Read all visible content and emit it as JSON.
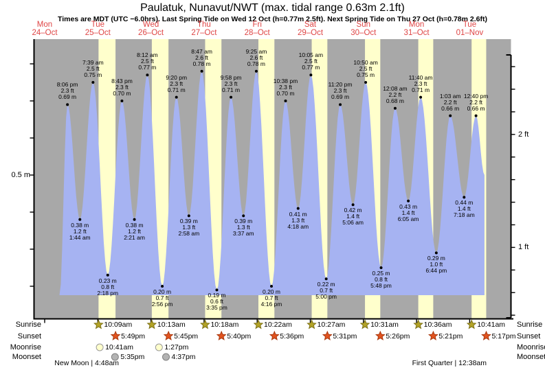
{
  "header": {
    "title": "Paulatuk, Nunavut/NWT (max. tidal range 0.63m 2.1ft)",
    "subtitle": "Times are MDT (UTC −6.0hrs). Last Spring Tide on Wed 12 Oct (h=0.77m 2.5ft). Next Spring Tide on Thu 27 Oct (h=0.78m 2.6ft)"
  },
  "days": [
    {
      "name": "Mon",
      "date": "24–Oct"
    },
    {
      "name": "Tue",
      "date": "25–Oct"
    },
    {
      "name": "Wed",
      "date": "26–Oct"
    },
    {
      "name": "Thu",
      "date": "27–Oct"
    },
    {
      "name": "Fri",
      "date": "28–Oct"
    },
    {
      "name": "Sat",
      "date": "29–Oct"
    },
    {
      "name": "Sun",
      "date": "30–Oct"
    },
    {
      "name": "Mon",
      "date": "31–Oct"
    },
    {
      "name": "Tue",
      "date": "01–Nov"
    }
  ],
  "axis": {
    "left_label": "0.5 m",
    "right_label_2ft": "2 ft",
    "right_label_1ft": "1 ft"
  },
  "chart_data": {
    "type": "area",
    "title": "Paulatuk, Nunavut/NWT (max. tidal range 0.63m 2.1ft)",
    "x_axis": {
      "unit": "days",
      "start": "Mon 24-Oct",
      "end": "Tue 01-Nov",
      "daylight_shaded": true
    },
    "y_axis_left": {
      "unit": "m",
      "labeled_tick": 0.5,
      "minor_step": 0.1,
      "tick_range": [
        0.2,
        0.8
      ]
    },
    "y_axis_right": {
      "unit": "ft",
      "labeled_ticks": [
        2,
        1
      ],
      "minor_step": 0.2,
      "tick_range": [
        0.4,
        2.6
      ]
    },
    "ylim_m": [
      0.13,
      0.87
    ],
    "series_start": {
      "day": 0,
      "time": "4:30 pm",
      "height_m": 0.17
    },
    "series_end": {
      "day": 8,
      "time": "4:30 pm",
      "height_m": 0.5
    },
    "tide_extremes": [
      {
        "day": 0,
        "time": "8:06 pm",
        "height_m": "0.69",
        "height_ft": "2.3",
        "type": "high"
      },
      {
        "day": 1,
        "time": "1:44 am",
        "height_m": "0.38",
        "height_ft": "1.2",
        "type": "low"
      },
      {
        "day": 1,
        "time": "7:39 am",
        "height_m": "0.75",
        "height_ft": "2.5",
        "type": "high"
      },
      {
        "day": 1,
        "time": "2:18 pm",
        "height_m": "0.23",
        "height_ft": "0.8",
        "type": "low"
      },
      {
        "day": 1,
        "time": "8:43 pm",
        "height_m": "0.70",
        "height_ft": "2.3",
        "type": "high"
      },
      {
        "day": 2,
        "time": "2:21 am",
        "height_m": "0.38",
        "height_ft": "1.2",
        "type": "low"
      },
      {
        "day": 2,
        "time": "8:12 am",
        "height_m": "0.77",
        "height_ft": "2.5",
        "type": "high"
      },
      {
        "day": 2,
        "time": "2:56 pm",
        "height_m": "0.20",
        "height_ft": "0.7",
        "type": "low"
      },
      {
        "day": 2,
        "time": "9:20 pm",
        "height_m": "0.71",
        "height_ft": "2.3",
        "type": "high"
      },
      {
        "day": 3,
        "time": "2:58 am",
        "height_m": "0.39",
        "height_ft": "1.3",
        "type": "low"
      },
      {
        "day": 3,
        "time": "8:47 am",
        "height_m": "0.78",
        "height_ft": "2.6",
        "type": "high"
      },
      {
        "day": 3,
        "time": "3:35 pm",
        "height_m": "0.19",
        "height_ft": "0.6",
        "type": "low"
      },
      {
        "day": 3,
        "time": "9:58 pm",
        "height_m": "0.71",
        "height_ft": "2.3",
        "type": "high"
      },
      {
        "day": 4,
        "time": "3:37 am",
        "height_m": "0.39",
        "height_ft": "1.3",
        "type": "low"
      },
      {
        "day": 4,
        "time": "9:25 am",
        "height_m": "0.78",
        "height_ft": "2.6",
        "type": "high"
      },
      {
        "day": 4,
        "time": "4:16 pm",
        "height_m": "0.20",
        "height_ft": "0.7",
        "type": "low"
      },
      {
        "day": 4,
        "time": "10:38 pm",
        "height_m": "0.70",
        "height_ft": "2.3",
        "type": "high"
      },
      {
        "day": 5,
        "time": "4:18 am",
        "height_m": "0.41",
        "height_ft": "1.3",
        "type": "low"
      },
      {
        "day": 5,
        "time": "10:05 am",
        "height_m": "0.77",
        "height_ft": "2.5",
        "type": "high"
      },
      {
        "day": 5,
        "time": "5:00 pm",
        "height_m": "0.22",
        "height_ft": "0.7",
        "type": "low"
      },
      {
        "day": 5,
        "time": "11:20 pm",
        "height_m": "0.69",
        "height_ft": "2.3",
        "type": "high"
      },
      {
        "day": 6,
        "time": "5:06 am",
        "height_m": "0.42",
        "height_ft": "1.4",
        "type": "low"
      },
      {
        "day": 6,
        "time": "10:50 am",
        "height_m": "0.75",
        "height_ft": "2.5",
        "type": "high"
      },
      {
        "day": 6,
        "time": "5:48 pm",
        "height_m": "0.25",
        "height_ft": "0.8",
        "type": "low"
      },
      {
        "day": 7,
        "time": "12:08 am",
        "height_m": "0.68",
        "height_ft": "2.2",
        "type": "high"
      },
      {
        "day": 7,
        "time": "6:05 am",
        "height_m": "0.43",
        "height_ft": "1.4",
        "type": "low"
      },
      {
        "day": 7,
        "time": "11:40 am",
        "height_m": "0.71",
        "height_ft": "2.3",
        "type": "high"
      },
      {
        "day": 7,
        "time": "6:44 pm",
        "height_m": "0.29",
        "height_ft": "1.0",
        "type": "low"
      },
      {
        "day": 8,
        "time": "1:03 am",
        "height_m": "0.66",
        "height_ft": "2.2",
        "type": "high"
      },
      {
        "day": 8,
        "time": "7:18 am",
        "height_m": "0.44",
        "height_ft": "1.4",
        "type": "low"
      },
      {
        "day": 8,
        "time": "12:40 pm",
        "height_m": "0.66",
        "height_ft": "2.2",
        "type": "high"
      }
    ]
  },
  "astro": {
    "rows": [
      {
        "label": "Sunrise",
        "icon": "sunrise-star",
        "entries": [
          {
            "day": 1,
            "time": "10:09am"
          },
          {
            "day": 2,
            "time": "10:13am"
          },
          {
            "day": 3,
            "time": "10:18am"
          },
          {
            "day": 4,
            "time": "10:22am"
          },
          {
            "day": 5,
            "time": "10:27am"
          },
          {
            "day": 6,
            "time": "10:31am"
          },
          {
            "day": 7,
            "time": "10:36am"
          },
          {
            "day": 8,
            "time": "10:41am"
          }
        ]
      },
      {
        "label": "Sunset",
        "icon": "sunset-star",
        "entries": [
          {
            "day": 1,
            "time": "5:49pm"
          },
          {
            "day": 2,
            "time": "5:45pm"
          },
          {
            "day": 3,
            "time": "5:40pm"
          },
          {
            "day": 4,
            "time": "5:36pm"
          },
          {
            "day": 5,
            "time": "5:31pm"
          },
          {
            "day": 6,
            "time": "5:26pm"
          },
          {
            "day": 7,
            "time": "5:21pm"
          },
          {
            "day": 8,
            "time": "5:17pm"
          }
        ]
      },
      {
        "label": "Moonrise",
        "icon": "moonrise-circle",
        "entries": [
          {
            "day": 1,
            "time": "10:41am"
          },
          {
            "day": 2,
            "time": "1:27pm"
          }
        ]
      },
      {
        "label": "Moonset",
        "icon": "moonset-circle",
        "entries": [
          {
            "day": 1,
            "time": "5:35pm"
          },
          {
            "day": 2,
            "time": "4:37pm"
          }
        ]
      }
    ],
    "phases": [
      {
        "text": "New Moon | 4:48am",
        "day": 1,
        "time": "4:48am"
      },
      {
        "text": "First Quarter | 12:38am",
        "day": 8,
        "time": "12:38am"
      }
    ]
  },
  "colors": {
    "background": "#ffffff",
    "plot_gray": "#a8a8a8",
    "daylight_yellow": "#ffffcc",
    "tide_blue": "#a6b3f2",
    "date_red": "#df4545",
    "axis_black": "#000000",
    "sunrise_star": "#b3a326",
    "sunrise_star_edge": "#7e7318",
    "sunset_star": "#e2531f",
    "sunset_star_edge": "#a93a10",
    "moonrise_fill": "#ffffcc",
    "moonrise_edge": "#999999",
    "moonset_fill": "#b3b3b3",
    "moonset_edge": "#808080"
  }
}
